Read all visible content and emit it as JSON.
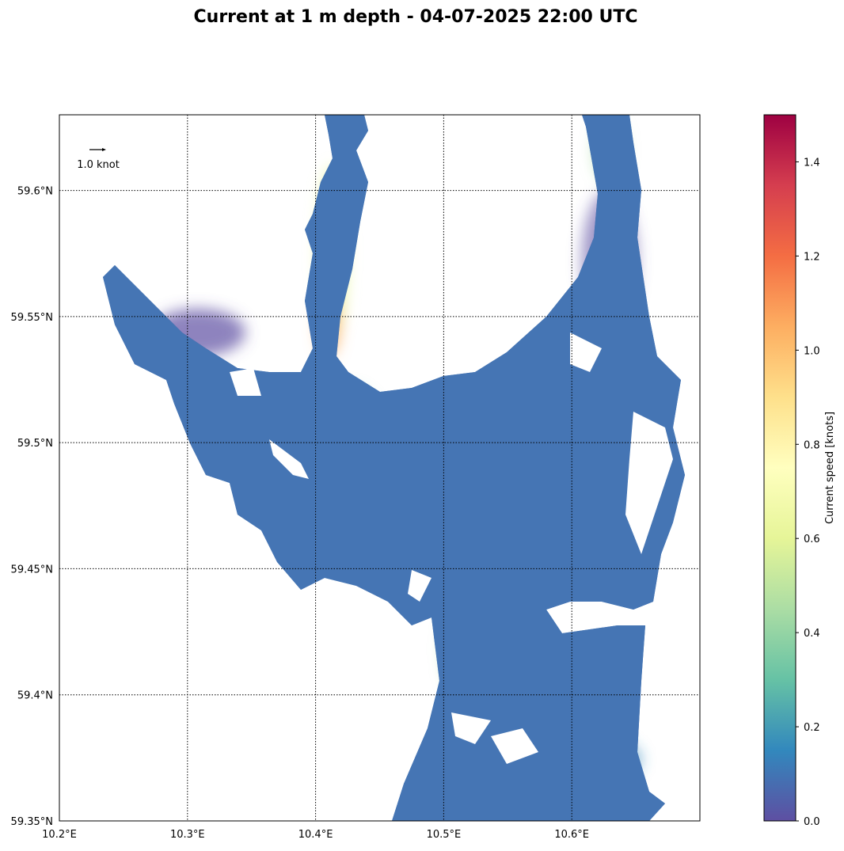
{
  "title": "Current at 1 m depth - 04-07-2025 22:00 UTC",
  "map": {
    "xlim": [
      10.2,
      10.7
    ],
    "ylim": [
      59.35,
      59.63
    ],
    "grid": true,
    "xticks": [
      {
        "value": 10.2,
        "label": "10.2°E"
      },
      {
        "value": 10.3,
        "label": "10.3°E"
      },
      {
        "value": 10.4,
        "label": "10.4°E"
      },
      {
        "value": 10.5,
        "label": "10.5°E"
      },
      {
        "value": 10.6,
        "label": "10.6°E"
      }
    ],
    "yticks": [
      {
        "value": 59.35,
        "label": "59.35°N"
      },
      {
        "value": 59.4,
        "label": "59.4°N"
      },
      {
        "value": 59.45,
        "label": "59.45°N"
      },
      {
        "value": 59.5,
        "label": "59.5°N"
      },
      {
        "value": 59.55,
        "label": "59.55°N"
      },
      {
        "value": 59.6,
        "label": "59.6°N"
      }
    ],
    "quiver_key": "1.0 knot"
  },
  "colorbar": {
    "label": "Current speed [knots]",
    "lim": [
      0,
      1.5
    ],
    "ticks": [
      {
        "value": 0,
        "label": "0.0"
      },
      0.2,
      0.4,
      0.6,
      0.8,
      {
        "value": 1,
        "label": "1.0"
      },
      1.2,
      1.4
    ]
  }
}
